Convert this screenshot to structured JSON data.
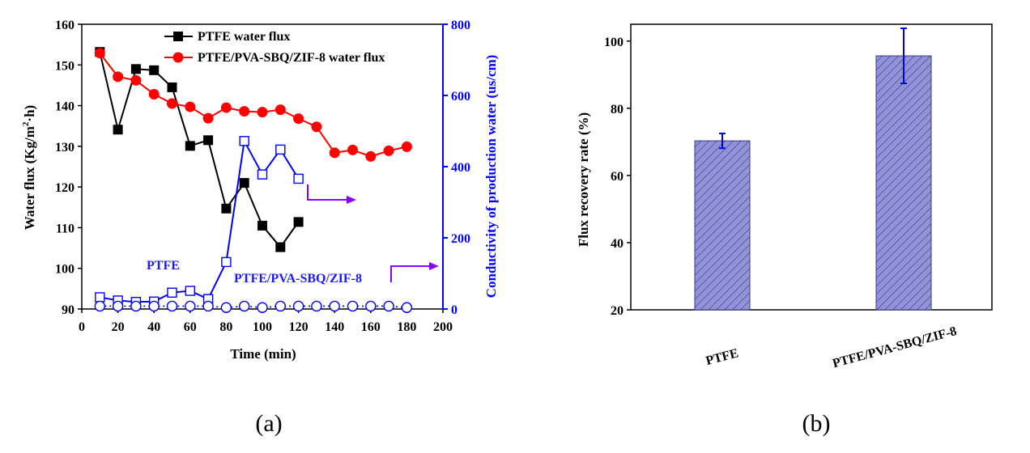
{
  "chart_data": [
    {
      "type": "line",
      "panel_label": "(a)",
      "xlabel": "Time (min)",
      "ylabel": "Water flux (Kg/m²·h)",
      "ylabel_parts": {
        "pre": "Water flux (Kg/m",
        "sup": "2",
        "post": "·h)"
      },
      "y2label": "Conductivity of production water (us/cm)",
      "xlim": [
        0,
        200
      ],
      "ylim": [
        90,
        160
      ],
      "y2lim": [
        0,
        800
      ],
      "x_ticks": [
        0,
        20,
        40,
        60,
        80,
        100,
        120,
        140,
        160,
        180,
        200
      ],
      "y_ticks": [
        90,
        100,
        110,
        120,
        130,
        140,
        150,
        160
      ],
      "y2_ticks": [
        0,
        200,
        400,
        600,
        800
      ],
      "series": [
        {
          "name": "PTFE water flux",
          "axis": "left",
          "color": "#000000",
          "marker": "square-filled",
          "x": [
            10,
            20,
            30,
            40,
            50,
            60,
            70,
            80,
            90,
            100,
            110,
            120
          ],
          "values": [
            153.2,
            134.1,
            149.0,
            148.7,
            144.5,
            130.1,
            131.5,
            114.7,
            121.0,
            110.5,
            105.2,
            111.4
          ]
        },
        {
          "name": "PTFE/PVA-SBQ/ZIF-8 water flux",
          "axis": "left",
          "color": "#ff0000",
          "marker": "circle-filled",
          "x": [
            10,
            20,
            30,
            40,
            50,
            60,
            70,
            80,
            90,
            100,
            110,
            120,
            130,
            140,
            150,
            160,
            170,
            180
          ],
          "values": [
            152.9,
            147.1,
            146.2,
            142.8,
            140.5,
            139.7,
            136.9,
            139.5,
            138.6,
            138.4,
            139.0,
            136.8,
            134.8,
            128.4,
            129.1,
            127.5,
            128.9,
            129.9
          ]
        },
        {
          "name": "PTFE conductivity",
          "axis": "right",
          "color": "#0000ff",
          "marker": "square-open",
          "x": [
            10,
            20,
            30,
            40,
            50,
            60,
            70,
            80,
            90,
            100,
            110,
            120
          ],
          "values": [
            33,
            24,
            20,
            21,
            46,
            51,
            28,
            132,
            472,
            378,
            448,
            366
          ]
        },
        {
          "name": "PTFE/PVA-SBQ/ZIF-8 conductivity",
          "axis": "right",
          "color": "#0000ff",
          "marker": "circle-open",
          "line": "dotted",
          "x": [
            10,
            20,
            30,
            40,
            50,
            60,
            70,
            80,
            90,
            100,
            110,
            120,
            130,
            140,
            150,
            160,
            170,
            180
          ],
          "values": [
            8,
            8,
            8,
            8,
            8,
            8,
            8,
            4,
            8,
            4,
            8,
            8,
            8,
            8,
            8,
            8,
            8,
            4
          ]
        }
      ],
      "legend": [
        "PTFE water flux",
        "PTFE/PVA-SBQ/ZIF-8 water flux"
      ],
      "annotations": [
        "PTFE",
        "PTFE/PVA-SBQ/ZIF-8"
      ]
    },
    {
      "type": "bar",
      "panel_label": "(b)",
      "categories": [
        "PTFE",
        "PTFE/PVA-SBQ/ZIF-8"
      ],
      "values": [
        70.3,
        95.6
      ],
      "errors": [
        2.2,
        8.2
      ],
      "ylabel": "Flux recovery rate (%)",
      "ylim": [
        20,
        105
      ],
      "y_ticks": [
        20,
        40,
        60,
        80,
        100
      ],
      "bar_color": "#8f90d4",
      "hatch_color": "#4a4aa8",
      "error_color": "#0000e0"
    }
  ]
}
